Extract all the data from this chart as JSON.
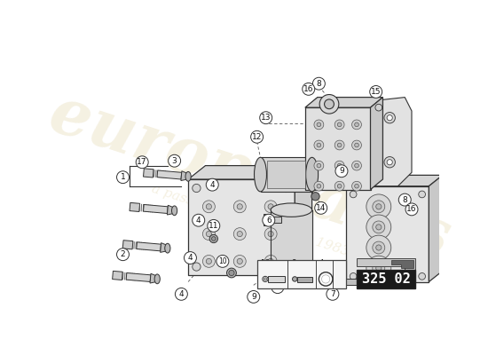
{
  "background_color": "#ffffff",
  "watermark_color": "#c8b060",
  "part_number_box": "325 02",
  "part_number_bg": "#1a1a1a",
  "part_number_color": "#ffffff",
  "line_color": "#444444",
  "fill_light": "#e8e8e8",
  "fill_mid": "#d0d0d0",
  "fill_dark": "#b8b8b8"
}
